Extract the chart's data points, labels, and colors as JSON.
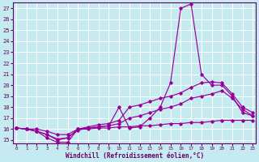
{
  "xlabel": "Windchill (Refroidissement éolien,°C)",
  "xlim": [
    -0.3,
    23.3
  ],
  "ylim": [
    14.7,
    27.5
  ],
  "xticks": [
    0,
    1,
    2,
    3,
    4,
    5,
    6,
    7,
    8,
    9,
    10,
    11,
    12,
    13,
    14,
    15,
    16,
    17,
    18,
    19,
    20,
    21,
    22,
    23
  ],
  "yticks": [
    15,
    16,
    17,
    18,
    19,
    20,
    21,
    22,
    23,
    24,
    25,
    26,
    27
  ],
  "background_color": "#c5eaef",
  "grid_color": "#ffffff",
  "line_color": "#990099",
  "lines": [
    {
      "x": [
        0,
        1,
        2,
        3,
        4,
        5,
        6,
        7,
        8,
        9,
        10,
        11,
        12,
        13,
        14,
        15,
        16,
        17,
        18,
        19,
        20,
        21,
        22,
        23
      ],
      "y": [
        16.1,
        16.0,
        15.8,
        15.2,
        14.8,
        14.8,
        16.0,
        16.1,
        16.2,
        16.3,
        18.0,
        16.1,
        16.2,
        17.0,
        18.0,
        20.2,
        27.0,
        27.4,
        21.0,
        20.0,
        20.0,
        19.0,
        17.5,
        17.2
      ]
    },
    {
      "x": [
        0,
        1,
        2,
        3,
        4,
        5,
        6,
        7,
        8,
        9,
        10,
        11,
        12,
        13,
        14,
        15,
        16,
        17,
        18,
        19,
        20,
        21,
        22,
        23
      ],
      "y": [
        16.1,
        16.0,
        15.8,
        15.5,
        15.0,
        15.2,
        16.0,
        16.2,
        16.4,
        16.5,
        16.8,
        18.0,
        18.2,
        18.5,
        18.8,
        19.0,
        19.3,
        19.8,
        20.2,
        20.3,
        20.2,
        19.2,
        18.0,
        17.5
      ]
    },
    {
      "x": [
        0,
        1,
        2,
        3,
        4,
        5,
        6,
        7,
        8,
        9,
        10,
        11,
        12,
        13,
        14,
        15,
        16,
        17,
        18,
        19,
        20,
        21,
        22,
        23
      ],
      "y": [
        16.1,
        16.0,
        15.8,
        15.5,
        15.1,
        15.2,
        15.9,
        16.1,
        16.2,
        16.3,
        16.5,
        17.0,
        17.2,
        17.5,
        17.8,
        18.0,
        18.3,
        18.8,
        19.0,
        19.2,
        19.5,
        18.8,
        17.8,
        17.2
      ]
    },
    {
      "x": [
        0,
        1,
        2,
        3,
        4,
        5,
        6,
        7,
        8,
        9,
        10,
        11,
        12,
        13,
        14,
        15,
        16,
        17,
        18,
        19,
        20,
        21,
        22,
        23
      ],
      "y": [
        16.1,
        16.0,
        16.0,
        15.8,
        15.5,
        15.5,
        16.0,
        16.0,
        16.1,
        16.1,
        16.2,
        16.2,
        16.3,
        16.3,
        16.4,
        16.5,
        16.5,
        16.6,
        16.6,
        16.7,
        16.8,
        16.8,
        16.8,
        16.8
      ]
    }
  ]
}
